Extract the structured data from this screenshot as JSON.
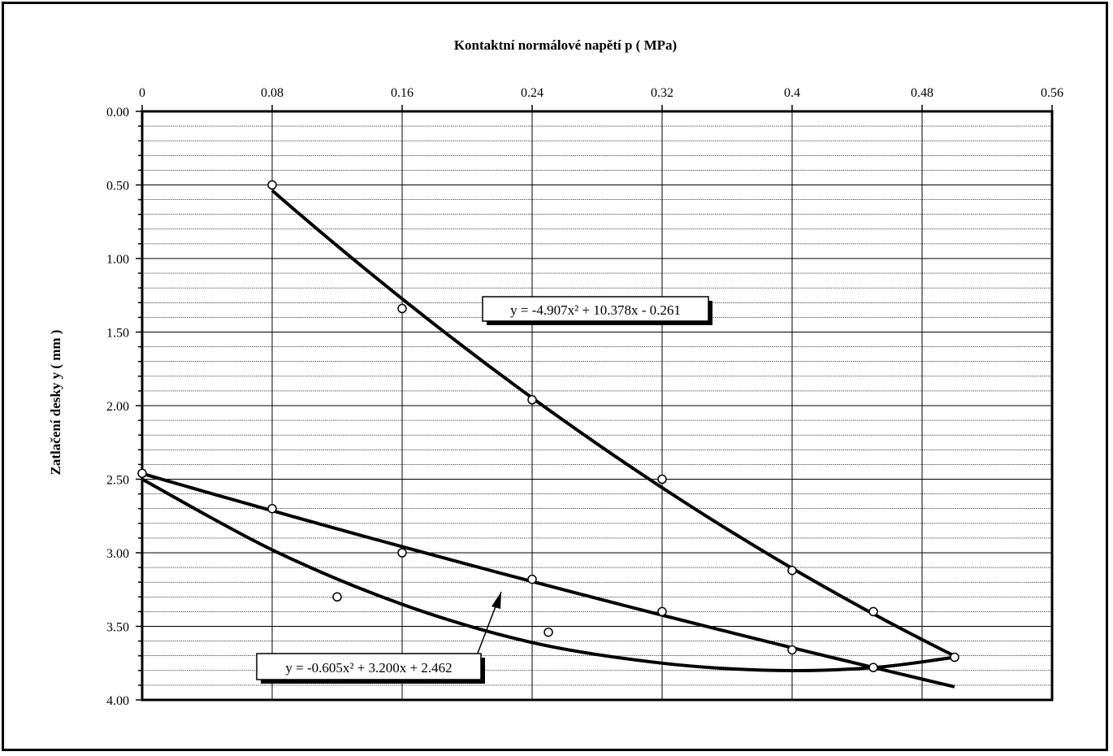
{
  "chart_data": {
    "type": "scatter",
    "title": "Kontaktní normálové napětí p ( MPa)",
    "xlabel": "Kontaktní normálové napětí p ( MPa)",
    "ylabel": "Zatlačení desky y  ( mm )",
    "x_ticks": [
      "0",
      "0.08",
      "0.16",
      "0.24",
      "0.32",
      "0.4",
      "0.48",
      "0.56"
    ],
    "y_ticks": [
      "0.00",
      "0.50",
      "1.00",
      "1.50",
      "2.00",
      "2.50",
      "3.00",
      "3.50",
      "4.00"
    ],
    "xlim": [
      0,
      0.56
    ],
    "ylim": [
      0,
      4.0
    ],
    "y_reversed": true,
    "x_axis_position": "top",
    "grid": true,
    "series": [
      {
        "values": [
          {
            "x": 0.08,
            "y": 0.5
          },
          {
            "x": 0.16,
            "y": 1.34
          },
          {
            "x": 0.24,
            "y": 1.96
          },
          {
            "x": 0.32,
            "y": 2.5
          },
          {
            "x": 0.4,
            "y": 3.12
          },
          {
            "x": 0.45,
            "y": 3.4
          },
          {
            "x": 0.5,
            "y": 3.71
          }
        ]
      },
      {
        "values": [
          {
            "x": 0.0,
            "y": 2.46
          },
          {
            "x": 0.08,
            "y": 2.7
          },
          {
            "x": 0.16,
            "y": 3.0
          },
          {
            "x": 0.24,
            "y": 3.18
          },
          {
            "x": 0.32,
            "y": 3.4
          },
          {
            "x": 0.4,
            "y": 3.66
          },
          {
            "x": 0.45,
            "y": 3.78
          }
        ]
      },
      {
        "values": [
          {
            "x": 0.12,
            "y": 3.3
          },
          {
            "x": 0.25,
            "y": 3.54
          }
        ]
      }
    ],
    "trendlines": [
      {
        "equation": "y = -4.907x² + 10.378x - 0.261",
        "coefficients": [
          -4.907,
          10.378,
          -0.261
        ],
        "x_range": [
          0.08,
          0.5
        ]
      },
      {
        "equation": "y = -0.605x² + 3.200x + 2.462",
        "coefficients": [
          -0.605,
          3.2,
          2.462
        ],
        "x_range": [
          0,
          0.5
        ]
      }
    ],
    "lower_curve": {
      "points": [
        {
          "x": 0.0,
          "y": 2.5
        },
        {
          "x": 0.08,
          "y": 2.98
        },
        {
          "x": 0.16,
          "y": 3.35
        },
        {
          "x": 0.24,
          "y": 3.61
        },
        {
          "x": 0.32,
          "y": 3.75
        },
        {
          "x": 0.39,
          "y": 3.8
        },
        {
          "x": 0.45,
          "y": 3.78
        },
        {
          "x": 0.5,
          "y": 3.71
        }
      ]
    }
  }
}
